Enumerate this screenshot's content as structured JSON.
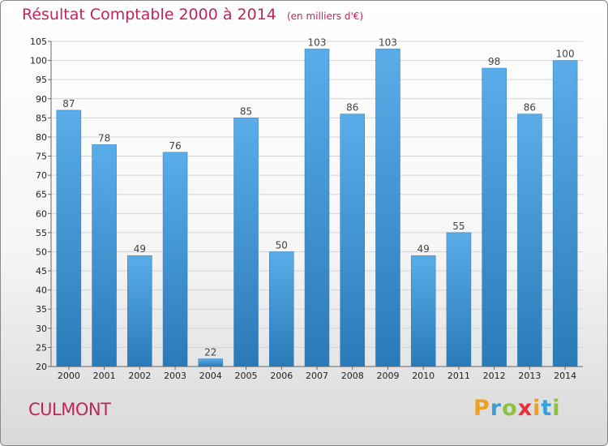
{
  "chart_data": {
    "type": "bar",
    "title": "Résultat Comptable 2000 à 2014",
    "unit_note": "(en milliers d'€)",
    "categories": [
      "2000",
      "2001",
      "2002",
      "2003",
      "2004",
      "2005",
      "2006",
      "2007",
      "2008",
      "2009",
      "2010",
      "2011",
      "2012",
      "2013",
      "2014"
    ],
    "values": [
      87,
      78,
      49,
      76,
      22,
      85,
      50,
      103,
      86,
      103,
      49,
      55,
      98,
      86,
      100
    ],
    "ylim": [
      20,
      105
    ],
    "yticks": [
      20,
      25,
      30,
      35,
      40,
      45,
      50,
      55,
      60,
      65,
      70,
      75,
      80,
      85,
      90,
      95,
      100,
      105
    ],
    "grid": true,
    "xlabel": "",
    "ylabel": "",
    "bar_color_top": "#5aade8",
    "bar_color_bottom": "#2a7ab8"
  },
  "place_name": "CULMONT",
  "logo": {
    "letters": [
      "P",
      "r",
      "o",
      "x",
      "i",
      "t",
      "i"
    ],
    "colors": [
      "#f0a020",
      "#3aa0d8",
      "#8ac43a",
      "#e8303a",
      "#f0a020",
      "#3aa0d8",
      "#8ac43a"
    ]
  },
  "colors": {
    "accent": "#c0245b"
  }
}
